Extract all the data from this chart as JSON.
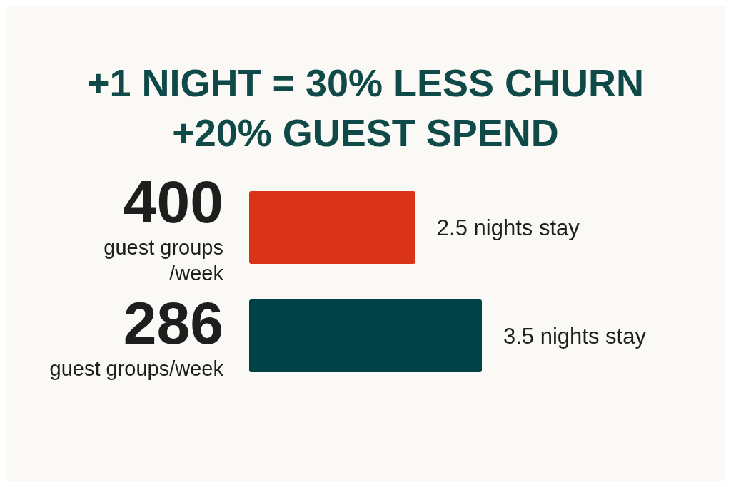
{
  "chart_data": {
    "type": "bar",
    "orientation": "horizontal",
    "title": "+1 NIGHT = 30% LESS CHURN\n+20% GUEST SPEND",
    "categories": [
      "400\nguest groups\n/week",
      "286\nguest groups/week"
    ],
    "values": [
      2.5,
      3.5
    ],
    "colors": [
      "#d93318",
      "#004346"
    ],
    "value_labels": [
      "2.5 nights stay",
      "3.5 nights stay"
    ]
  }
}
